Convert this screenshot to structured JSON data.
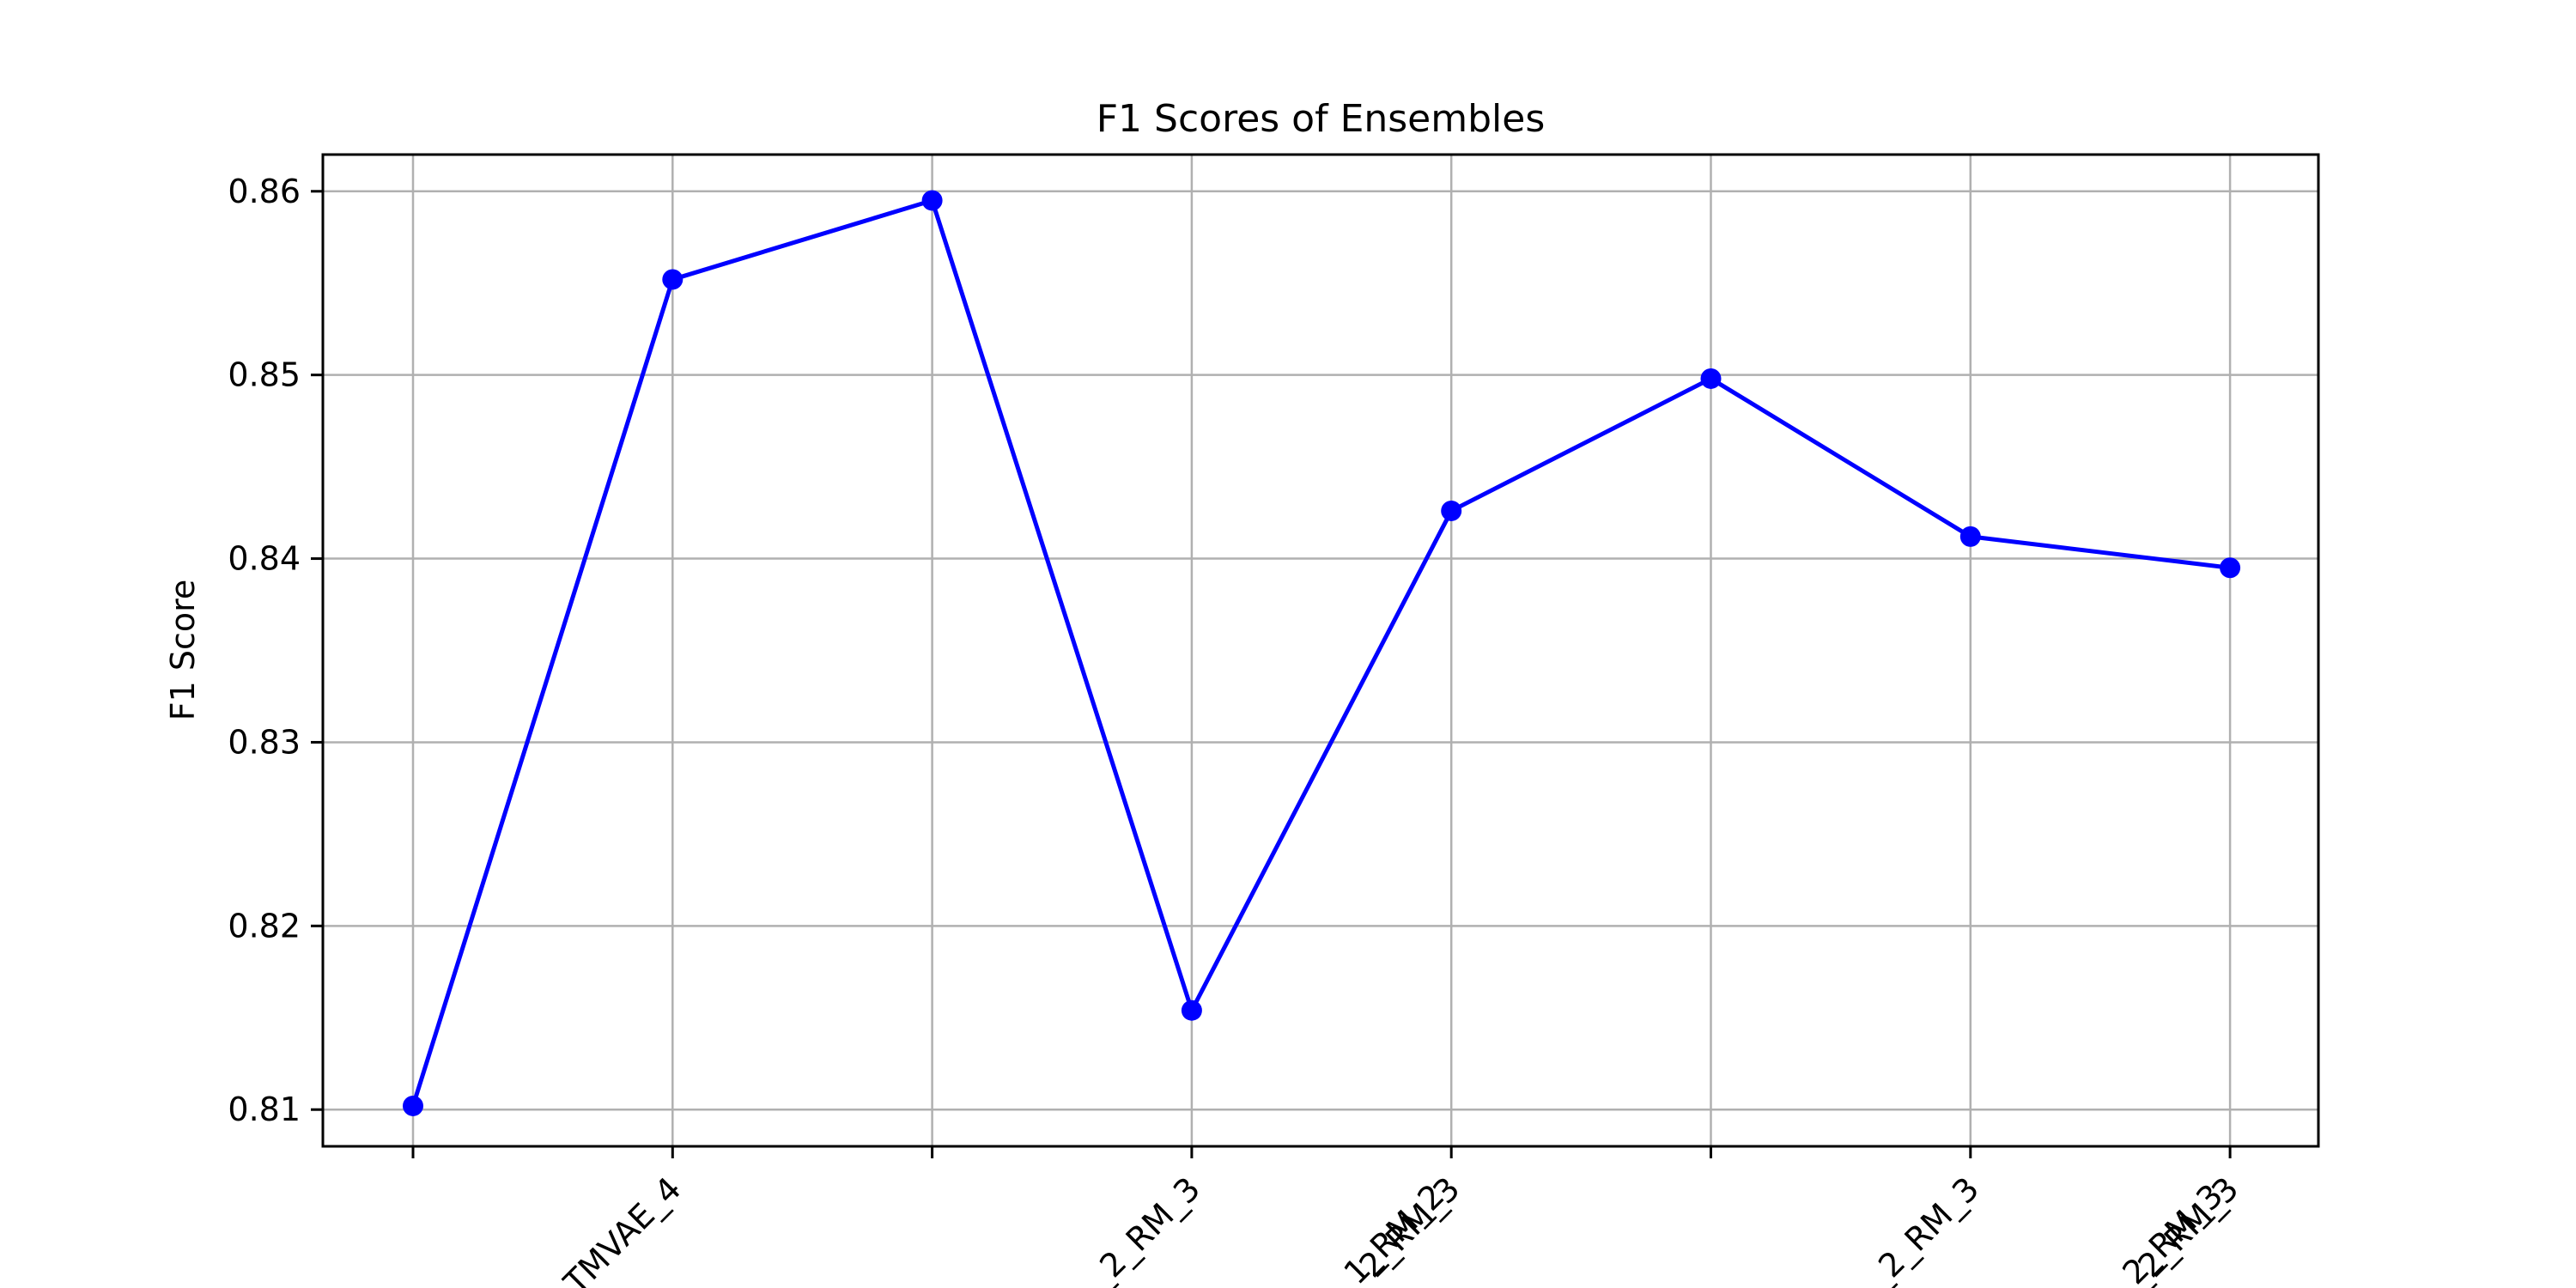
{
  "chart_data": {
    "type": "line",
    "title": "F1 Scores of Ensembles",
    "xlabel": "",
    "ylabel": "F1 Score",
    "categories": [
      "",
      "TMVAE_4",
      "",
      "_2_RM_3",
      "2_RM_3",
      "",
      "_2_RM_3",
      "_2_RM_3"
    ],
    "extra_tick_labels": [
      {
        "index": 4,
        "text": "1_RM_2"
      },
      {
        "index": 7,
        "text": "_2_RM_3"
      }
    ],
    "series": [
      {
        "values": [
          0.8102,
          0.8552,
          0.8595,
          0.8154,
          0.8426,
          0.8498,
          0.8412,
          0.8395
        ],
        "color": "#0000ff",
        "marker": "circle"
      }
    ],
    "ylim": [
      0.808,
      0.862
    ],
    "yticks": [
      0.81,
      0.82,
      0.83,
      0.84,
      0.85,
      0.86
    ],
    "ytick_labels": [
      "0.81",
      "0.82",
      "0.83",
      "0.84",
      "0.85",
      "0.86"
    ],
    "grid": true,
    "legend": "none"
  }
}
